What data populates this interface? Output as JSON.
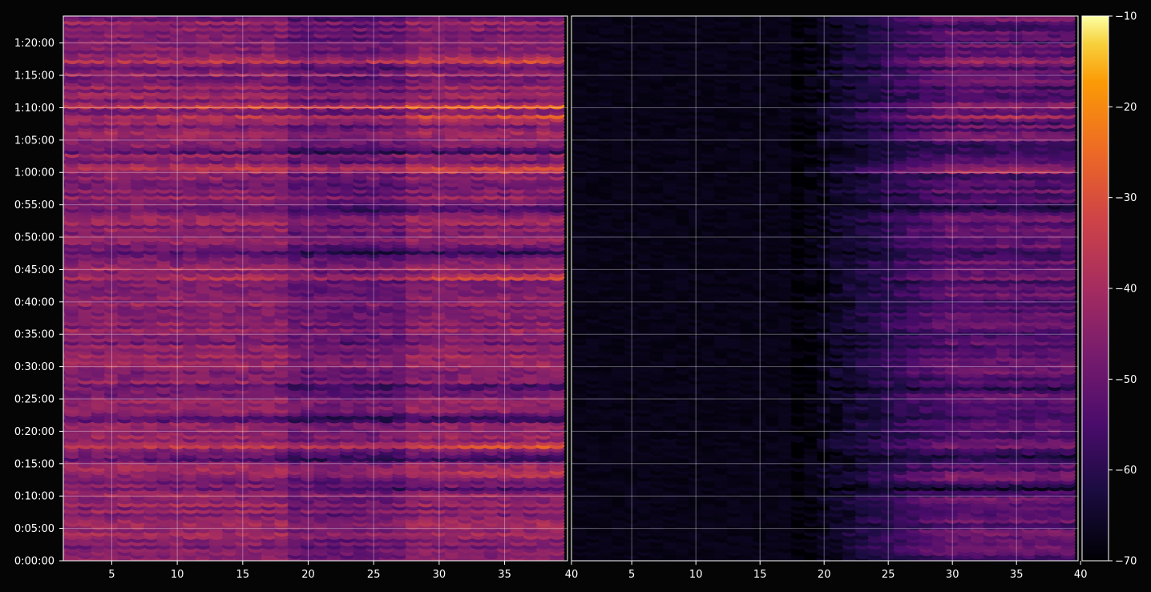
{
  "chart_data": {
    "type": "heatmap",
    "title": "",
    "xlabel": "",
    "ylabel": "",
    "colormap": "inferno",
    "background_color": "#050505",
    "panels": [
      {
        "name_hint": "left",
        "xlim": [
          1.3,
          39.8
        ]
      },
      {
        "name_hint": "right",
        "xlim": [
          0.3,
          39.8
        ]
      }
    ],
    "x_ticks": [
      5,
      10,
      15,
      20,
      25,
      30,
      35,
      40
    ],
    "x_tick_labels_left": [
      "5",
      "10",
      "15",
      "20",
      "25",
      "30",
      "35"
    ],
    "x_tick_labels_right": [
      "40",
      "5",
      "10",
      "15",
      "20",
      "25",
      "30",
      "35",
      "40"
    ],
    "y_ticks_seconds": [
      0,
      300,
      600,
      900,
      1200,
      1500,
      1800,
      2100,
      2400,
      2700,
      3000,
      3300,
      3600,
      3900,
      4200,
      4500,
      4800
    ],
    "y_tick_labels": [
      "0:00:00",
      "0:05:00",
      "0:10:00",
      "0:15:00",
      "0:20:00",
      "0:25:00",
      "0:30:00",
      "0:35:00",
      "0:40:00",
      "0:45:00",
      "0:50:00",
      "0:55:00",
      "1:00:00",
      "1:05:00",
      "1:10:00",
      "1:15:00",
      "1:20:00"
    ],
    "ylim_seconds": [
      0,
      5050
    ],
    "grid": true,
    "colorbar": {
      "range": [
        -70,
        -10
      ],
      "ticks": [
        -10,
        -20,
        -30,
        -40,
        -50,
        -60,
        -70
      ],
      "tick_labels": [
        "−10",
        "−20",
        "−30",
        "−40",
        "−50",
        "−60",
        "−70"
      ]
    },
    "bright_bands_seconds": [
      4640,
      4110,
      2620,
      1950,
      1060,
      795,
      3610,
      4200
    ],
    "dark_bands_seconds": [
      660,
      950,
      1320,
      1600,
      1950,
      2850,
      3260,
      3800
    ]
  }
}
